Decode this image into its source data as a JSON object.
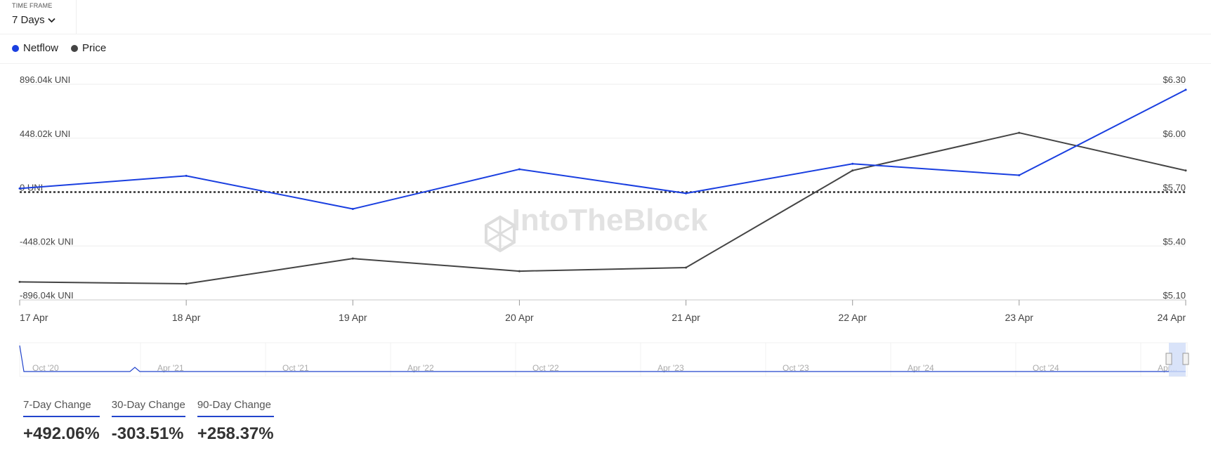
{
  "timeframe": {
    "label": "TIME FRAME",
    "value": "7 Days"
  },
  "legend": [
    {
      "name": "Netflow",
      "color": "#1a3fe0"
    },
    {
      "name": "Price",
      "color": "#444444"
    }
  ],
  "watermark": "IntoTheBlock",
  "chart_data": {
    "type": "line",
    "x": [
      "17 Apr",
      "18 Apr",
      "19 Apr",
      "20 Apr",
      "21 Apr",
      "22 Apr",
      "23 Apr",
      "24 Apr"
    ],
    "series": [
      {
        "name": "Netflow",
        "axis": "left",
        "color": "#1a3fe0",
        "values": [
          30000,
          135000,
          -140000,
          190000,
          -10000,
          235000,
          140000,
          850000
        ]
      },
      {
        "name": "Price",
        "axis": "right",
        "color": "#444444",
        "values": [
          5.2,
          5.19,
          5.33,
          5.26,
          5.28,
          5.82,
          6.03,
          5.82
        ]
      }
    ],
    "left_axis": {
      "ticks": [
        "896.04k UNI",
        "448.02k UNI",
        "0 UNI",
        "-448.02k UNI",
        "-896.04k UNI"
      ],
      "min": -896040,
      "max": 896040
    },
    "right_axis": {
      "ticks": [
        "$6.30",
        "$6.00",
        "$5.70",
        "$5.40",
        "$5.10"
      ],
      "min": 5.1,
      "max": 6.3
    },
    "zero_line": "dotted",
    "grid": true,
    "navigator": {
      "labels": [
        "Oct '20",
        "Apr '21",
        "Oct '21",
        "Apr '22",
        "Oct '22",
        "Apr '23",
        "Oct '23",
        "Apr '24",
        "Oct '24",
        "Apr..."
      ]
    }
  },
  "stats": [
    {
      "label": "7-Day Change",
      "value": "+492.06%"
    },
    {
      "label": "30-Day Change",
      "value": "-303.51%"
    },
    {
      "label": "90-Day Change",
      "value": "+258.37%"
    }
  ]
}
